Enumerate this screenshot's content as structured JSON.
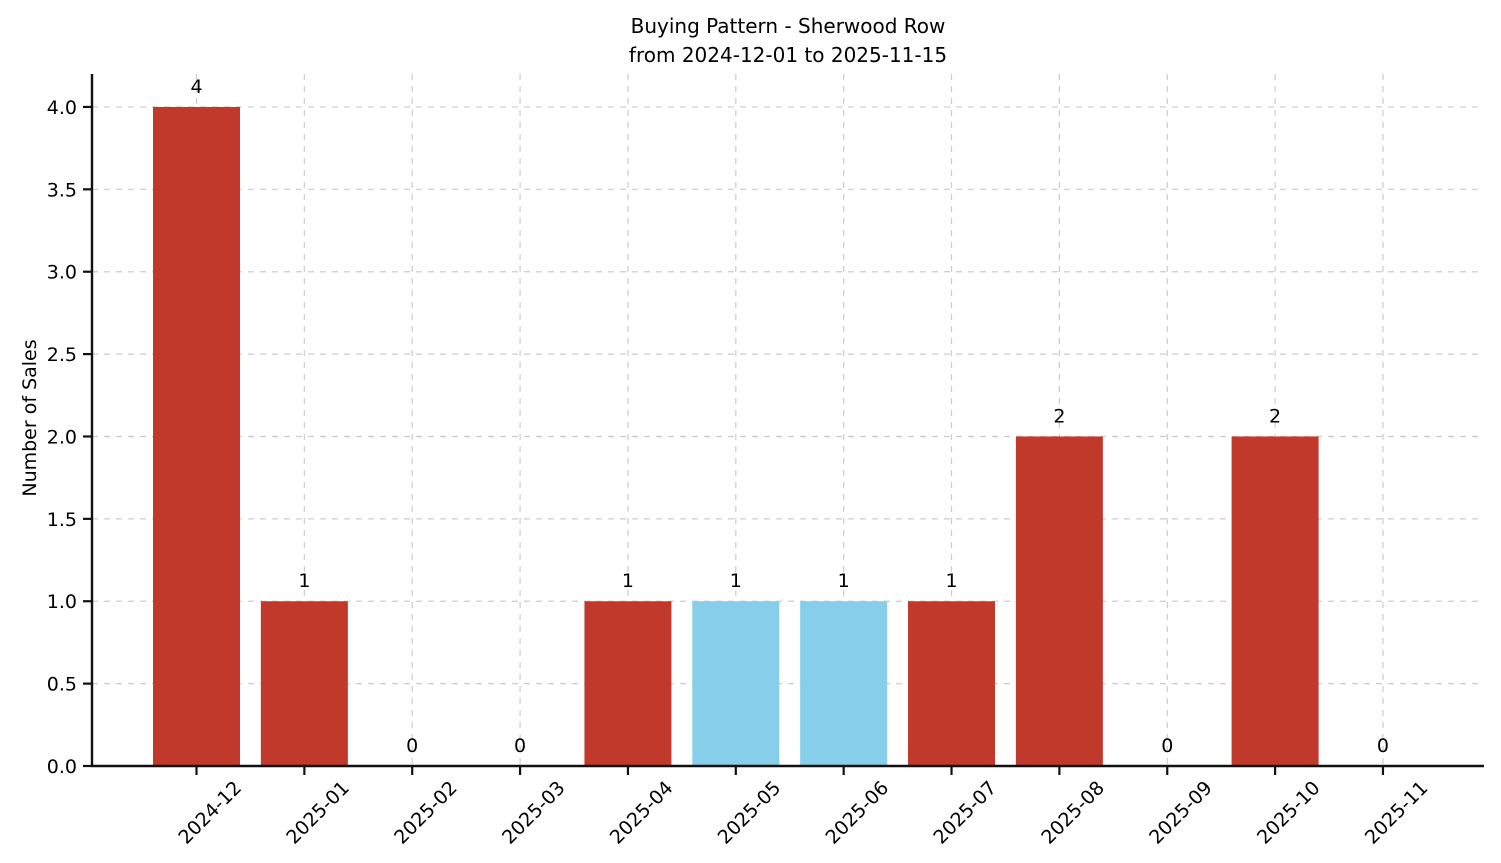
{
  "chart_data": {
    "type": "bar",
    "title": "Buying Pattern - Sherwood Row",
    "subtitle": "from 2024-12-01 to 2025-11-15",
    "ylabel": "Number of Sales",
    "xlabel": "",
    "categories": [
      "2024-12",
      "2025-01",
      "2025-02",
      "2025-03",
      "2025-04",
      "2025-05",
      "2025-06",
      "2025-07",
      "2025-08",
      "2025-09",
      "2025-10",
      "2025-11"
    ],
    "values": [
      4,
      1,
      0,
      0,
      1,
      1,
      1,
      1,
      2,
      0,
      2,
      0
    ],
    "value_labels": [
      "4",
      "1",
      "0",
      "0",
      "1",
      "1",
      "1",
      "1",
      "2",
      "0",
      "2",
      "0"
    ],
    "bar_colors": [
      "#c0392b",
      "#c0392b",
      "#c0392b",
      "#c0392b",
      "#c0392b",
      "#87ceeb",
      "#87ceeb",
      "#c0392b",
      "#c0392b",
      "#c0392b",
      "#c0392b",
      "#c0392b"
    ],
    "ytick_values": [
      0,
      0.5,
      1,
      1.5,
      2,
      2.5,
      3,
      3.5,
      4
    ],
    "ytick_labels": [
      "0.0",
      "0.5",
      "1.0",
      "1.5",
      "2.0",
      "2.5",
      "3.0",
      "3.5",
      "4.0"
    ],
    "ylim": [
      0,
      4.2
    ],
    "x_tick_rotation_deg": 45,
    "grid": {
      "visible": true,
      "style": "dashed",
      "color": "#cccccc",
      "horizontal": true,
      "vertical": true
    },
    "colors": {
      "red_bar": "#c0392b",
      "blue_bar": "#87ceeb",
      "axis": "#111111",
      "text": "#000000",
      "background": "#ffffff"
    }
  }
}
